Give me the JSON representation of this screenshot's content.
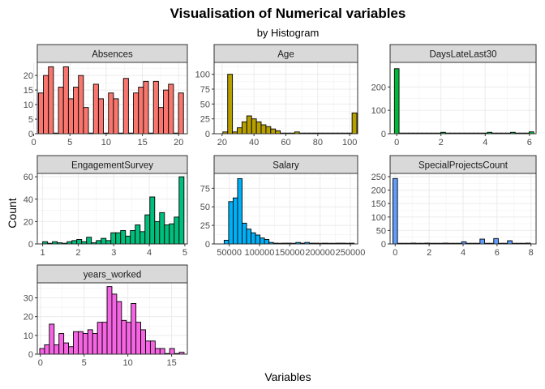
{
  "title": "Visualisation of Numerical variables",
  "subtitle": "by Histogram",
  "xlabel": "Variables",
  "ylabel": "Count",
  "chart_data": [
    {
      "type": "bar",
      "title": "Absences",
      "color": "#F8766D",
      "bar_width": 0.69,
      "xlim": [
        0.5,
        21.2
      ],
      "ylim": [
        0,
        24.5
      ],
      "xticks": [
        0,
        5,
        10,
        15,
        20
      ],
      "yticks": [
        0,
        5,
        10,
        15,
        20
      ],
      "x": [
        1,
        1.69,
        2.38,
        3.07,
        3.76,
        4.45,
        5.14,
        5.83,
        6.52,
        7.21,
        7.9,
        8.59,
        9.28,
        9.97,
        10.66,
        11.35,
        12.04,
        12.73,
        13.42,
        14.11,
        14.8,
        15.49,
        16.18,
        16.87,
        17.56,
        18.25,
        18.94,
        19.63,
        20.32
      ],
      "values": [
        14,
        20,
        23,
        0,
        16,
        23,
        12,
        16,
        20,
        9,
        0,
        17,
        12,
        0,
        14,
        12,
        0,
        19,
        0,
        14,
        16,
        18,
        0,
        18,
        9,
        15,
        17,
        0,
        14
      ]
    },
    {
      "type": "bar",
      "title": "Age",
      "color": "#B79F00",
      "bar_width": 3.0,
      "xlim": [
        15,
        105
      ],
      "ylim": [
        0,
        120
      ],
      "xticks": [
        20,
        40,
        60,
        80,
        100
      ],
      "yticks": [
        0,
        25,
        50,
        75,
        100
      ],
      "x": [
        22,
        25,
        28,
        31,
        34,
        37,
        40,
        43,
        46,
        49,
        52,
        55,
        58,
        61,
        64,
        67,
        70,
        73,
        76,
        79,
        82,
        85,
        88,
        91,
        94,
        97,
        100,
        103
      ],
      "values": [
        3,
        100,
        3,
        10,
        20,
        30,
        25,
        20,
        15,
        12,
        8,
        5,
        1,
        1,
        0,
        3,
        0,
        0,
        0,
        0,
        0,
        0,
        0,
        0,
        0,
        0,
        0,
        35
      ]
    },
    {
      "type": "bar",
      "title": "DaysLateLast30",
      "color": "#00BA38",
      "bar_width": 0.21,
      "xlim": [
        -0.3,
        6.3
      ],
      "ylim": [
        0,
        305
      ],
      "xticks": [
        0,
        2,
        4,
        6
      ],
      "yticks": [
        0,
        100,
        200
      ],
      "x": [
        0,
        0.21,
        0.42,
        0.63,
        0.84,
        1.05,
        1.26,
        1.47,
        1.68,
        1.89,
        2.1,
        2.31,
        2.52,
        2.73,
        2.94,
        3.15,
        3.36,
        3.57,
        3.78,
        3.99,
        4.2,
        4.41,
        4.62,
        4.83,
        5.04,
        5.25,
        5.46,
        5.67,
        5.88,
        6.09
      ],
      "values": [
        278,
        0,
        0,
        0,
        0,
        0,
        0,
        0,
        0,
        0,
        6,
        0,
        0,
        0,
        0,
        0,
        0,
        0,
        0,
        0,
        6,
        0,
        0,
        0,
        0,
        6,
        0,
        0,
        0,
        8
      ]
    },
    {
      "type": "bar",
      "title": "EngagementSurvey",
      "color": "#00BF7D",
      "bar_width": 0.137,
      "xlim": [
        0.85,
        5.07
      ],
      "ylim": [
        0,
        63
      ],
      "xticks": [
        1,
        2,
        3,
        4,
        5
      ],
      "yticks": [
        0,
        20,
        40,
        60
      ],
      "x": [
        1.07,
        1.207,
        1.344,
        1.481,
        1.618,
        1.755,
        1.892,
        2.029,
        2.166,
        2.303,
        2.44,
        2.577,
        2.714,
        2.851,
        2.988,
        3.125,
        3.262,
        3.399,
        3.536,
        3.673,
        3.81,
        3.947,
        4.084,
        4.221,
        4.358,
        4.495,
        4.632,
        4.769,
        4.906
      ],
      "values": [
        2,
        0,
        2,
        1,
        0,
        2,
        3,
        4,
        2,
        6,
        1,
        3,
        5,
        3,
        10,
        10,
        12,
        7,
        12,
        17,
        11,
        26,
        42,
        20,
        28,
        17,
        18,
        24,
        60
      ]
    },
    {
      "type": "bar",
      "title": "Salary",
      "color": "#00B0F6",
      "bar_width": 7400,
      "xlim": [
        25000,
        262000
      ],
      "ylim": [
        0,
        95
      ],
      "xticks": [
        50000,
        100000,
        150000,
        200000,
        250000
      ],
      "yticks": [
        0,
        25,
        50,
        75
      ],
      "x": [
        45300,
        52700,
        60100,
        67500,
        74900,
        82300,
        89700,
        97100,
        104500,
        111900,
        119300,
        126700,
        134100,
        141500,
        148900,
        156300,
        163700,
        171100,
        178500,
        185900,
        193300,
        200700,
        208100,
        215500,
        222900,
        230300,
        237700,
        245100,
        252500
      ],
      "values": [
        5,
        57,
        62,
        88,
        28,
        20,
        15,
        12,
        8,
        6,
        2,
        1,
        0,
        1,
        1,
        0,
        2,
        1,
        2,
        1,
        1,
        0,
        1,
        0,
        0,
        1,
        1,
        0,
        1
      ]
    },
    {
      "type": "bar",
      "title": "SpecialProjectsCount",
      "color": "#619CFF",
      "bar_width": 0.27,
      "xlim": [
        -0.3,
        8.3
      ],
      "ylim": [
        0,
        262
      ],
      "xticks": [
        0,
        2,
        4,
        6,
        8
      ],
      "yticks": [
        0,
        50,
        100,
        150,
        200,
        250
      ],
      "x": [
        0,
        0.27,
        0.54,
        0.81,
        1.08,
        1.35,
        1.62,
        1.89,
        2.16,
        2.43,
        2.7,
        2.97,
        3.24,
        3.51,
        3.78,
        4.05,
        4.32,
        4.59,
        4.86,
        5.13,
        5.4,
        5.67,
        5.94,
        6.21,
        6.48,
        6.75,
        7.02,
        7.29,
        7.56,
        7.83
      ],
      "values": [
        243,
        0,
        0,
        0,
        3,
        0,
        0,
        3,
        0,
        0,
        0,
        3,
        0,
        0,
        0,
        8,
        0,
        0,
        0,
        18,
        0,
        0,
        20,
        0,
        0,
        12,
        0,
        0,
        0,
        3
      ]
    },
    {
      "type": "bar",
      "title": "years_worked",
      "color": "#F564E3",
      "bar_width": 0.55,
      "xlim": [
        -0.35,
        16.8
      ],
      "ylim": [
        0,
        38
      ],
      "xticks": [
        0,
        5,
        10,
        15
      ],
      "yticks": [
        0,
        10,
        20,
        30
      ],
      "x": [
        0.2,
        0.75,
        1.3,
        1.85,
        2.4,
        2.95,
        3.5,
        4.05,
        4.6,
        5.15,
        5.7,
        6.25,
        6.8,
        7.35,
        7.9,
        8.45,
        9.0,
        9.55,
        10.1,
        10.65,
        11.2,
        11.75,
        12.3,
        12.85,
        13.4,
        13.95,
        14.5,
        15.05,
        15.6,
        16.15
      ],
      "values": [
        3,
        5,
        16,
        5,
        11,
        6,
        4,
        12,
        12,
        11,
        13,
        11,
        17,
        17,
        36,
        32,
        28,
        18,
        17,
        27,
        17,
        13,
        7,
        7,
        3,
        3,
        0,
        3,
        0,
        1
      ]
    }
  ]
}
